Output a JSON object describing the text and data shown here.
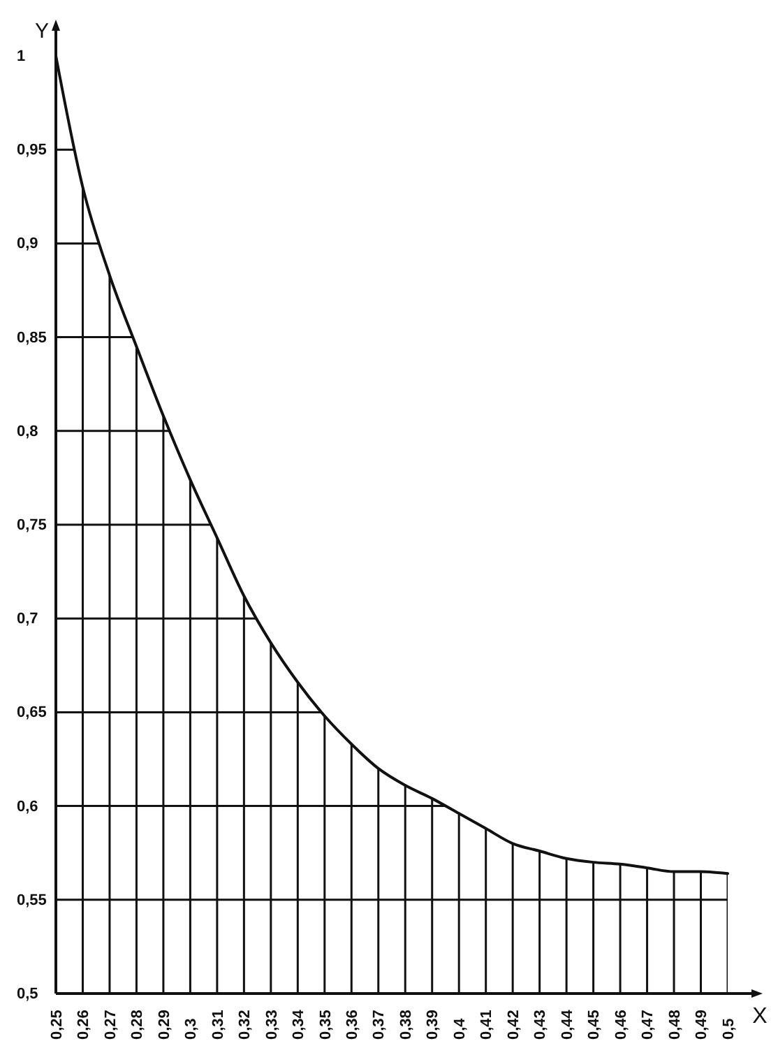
{
  "chart_data": {
    "type": "line",
    "xlabel": "X",
    "ylabel": "Y",
    "x": [
      0.25,
      0.26,
      0.27,
      0.28,
      0.29,
      0.3,
      0.31,
      0.32,
      0.33,
      0.34,
      0.35,
      0.36,
      0.37,
      0.38,
      0.39,
      0.4,
      0.41,
      0.42,
      0.43,
      0.44,
      0.45,
      0.46,
      0.47,
      0.48,
      0.49,
      0.5
    ],
    "series": [
      {
        "color": "#111111",
        "values": [
          1,
          0.93,
          0.883,
          0.845,
          0.808,
          0.774,
          0.743,
          0.712,
          0.687,
          0.666,
          0.648,
          0.633,
          0.62,
          0.611,
          0.604,
          0.596,
          0.588,
          0.58,
          0.576,
          0.572,
          0.57,
          0.569,
          0.567,
          0.565,
          0.565,
          0.564
        ]
      }
    ],
    "xlim": [
      0.25,
      0.5
    ],
    "ylim": [
      0.5,
      1
    ],
    "xticks": [
      {
        "value": 0.25,
        "label": "0,25"
      },
      {
        "value": 0.26,
        "label": "0,26"
      },
      {
        "value": 0.27,
        "label": "0,27"
      },
      {
        "value": 0.28,
        "label": "0,28"
      },
      {
        "value": 0.29,
        "label": "0,29"
      },
      {
        "value": 0.3,
        "label": "0,3"
      },
      {
        "value": 0.31,
        "label": "0,31"
      },
      {
        "value": 0.32,
        "label": "0,32"
      },
      {
        "value": 0.33,
        "label": "0,33"
      },
      {
        "value": 0.34,
        "label": "0,34"
      },
      {
        "value": 0.35,
        "label": "0,35"
      },
      {
        "value": 0.36,
        "label": "0,36"
      },
      {
        "value": 0.37,
        "label": "0,37"
      },
      {
        "value": 0.38,
        "label": "0,38"
      },
      {
        "value": 0.39,
        "label": "0,39"
      },
      {
        "value": 0.4,
        "label": "0,4"
      },
      {
        "value": 0.41,
        "label": "0,41"
      },
      {
        "value": 0.42,
        "label": "0,42"
      },
      {
        "value": 0.43,
        "label": "0,43"
      },
      {
        "value": 0.44,
        "label": "0,44"
      },
      {
        "value": 0.45,
        "label": "0,45"
      },
      {
        "value": 0.46,
        "label": "0,46"
      },
      {
        "value": 0.47,
        "label": "0,47"
      },
      {
        "value": 0.48,
        "label": "0,48"
      },
      {
        "value": 0.49,
        "label": "0,49"
      },
      {
        "value": 0.5,
        "label": "0,5"
      }
    ],
    "yticks": [
      {
        "value": 0.5,
        "label": "0,5"
      },
      {
        "value": 0.55,
        "label": "0,55"
      },
      {
        "value": 0.6,
        "label": "0,6"
      },
      {
        "value": 0.65,
        "label": "0,65"
      },
      {
        "value": 0.7,
        "label": "0,7"
      },
      {
        "value": 0.75,
        "label": "0,75"
      },
      {
        "value": 0.8,
        "label": "0,8"
      },
      {
        "value": 0.85,
        "label": "0,85"
      },
      {
        "value": 0.9,
        "label": "0,9"
      },
      {
        "value": 0.95,
        "label": "0,95"
      },
      1
    ],
    "grid": true
  }
}
